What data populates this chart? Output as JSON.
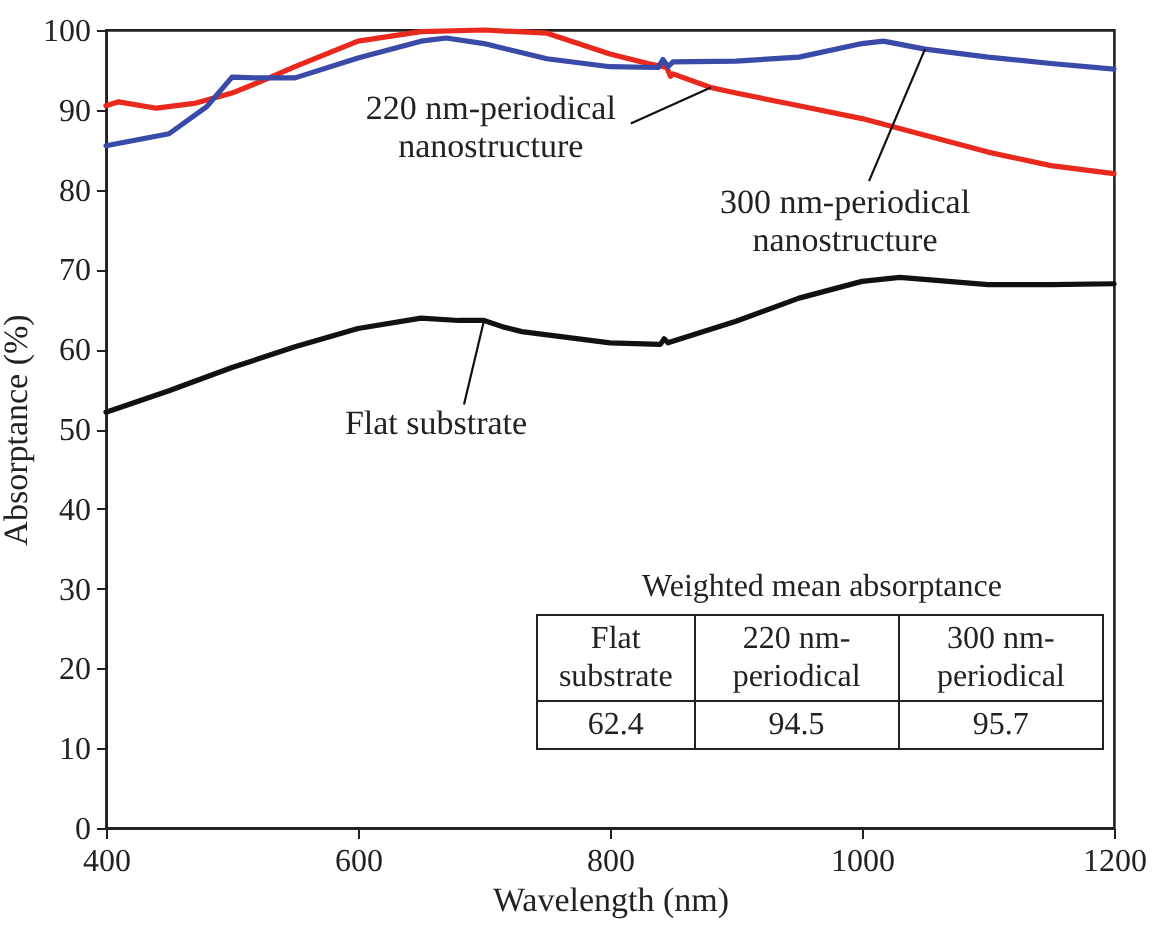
{
  "chart_data": {
    "type": "line",
    "xlabel": "Wavelength (nm)",
    "ylabel": "Absorptance (%)",
    "xlim": [
      400,
      1200
    ],
    "ylim": [
      0,
      100
    ],
    "xticks": [
      400,
      600,
      800,
      1000,
      1200
    ],
    "yticks": [
      0,
      10,
      20,
      30,
      40,
      50,
      60,
      70,
      80,
      90,
      100
    ],
    "grid": false,
    "line_style": "solid",
    "marker": "none",
    "series": [
      {
        "color": "#111111",
        "x": [
          400,
          450,
          500,
          550,
          600,
          650,
          680,
          700,
          715,
          730,
          800,
          840,
          843,
          846,
          900,
          950,
          1000,
          1030,
          1100,
          1150,
          1200
        ],
        "values": [
          52.1,
          54.8,
          57.7,
          60.3,
          62.6,
          63.9,
          63.6,
          63.6,
          62.8,
          62.2,
          60.8,
          60.6,
          61.3,
          60.8,
          63.5,
          66.4,
          68.5,
          69,
          68.1,
          68.1,
          68.2
        ]
      },
      {
        "color": "#e8291c",
        "x": [
          400,
          410,
          440,
          470,
          500,
          522,
          550,
          600,
          650,
          700,
          750,
          800,
          830,
          845,
          848,
          850,
          880,
          900,
          950,
          1000,
          1050,
          1100,
          1150,
          1200
        ],
        "values": [
          90.5,
          91,
          90.2,
          90.8,
          92.1,
          93.5,
          95.4,
          98.6,
          99.8,
          100,
          99.6,
          97,
          95.8,
          95.3,
          94.2,
          94.5,
          92.8,
          92.1,
          90.5,
          88.9,
          86.8,
          84.7,
          83,
          82
        ]
      },
      {
        "color": "#3a4aa8",
        "x": [
          400,
          450,
          480,
          500,
          520,
          550,
          600,
          650,
          670,
          700,
          750,
          800,
          838,
          842,
          846,
          850,
          900,
          950,
          1000,
          1017,
          1050,
          1100,
          1150,
          1200
        ],
        "values": [
          85.5,
          87,
          90.4,
          94.1,
          94,
          94,
          96.5,
          98.6,
          99,
          98.3,
          96.4,
          95.4,
          95.3,
          96.3,
          95.4,
          96,
          96.1,
          96.6,
          98.3,
          98.6,
          97.6,
          96.6,
          95.8,
          95.1
        ]
      }
    ],
    "annotations": [
      {
        "text": "Flat substrate",
        "x": 700,
        "y": 63.6
      },
      {
        "text": "220 nm-periodical nanostructure",
        "x": 880,
        "y": 92.8
      },
      {
        "text": "300 nm-periodical nanostructure",
        "x": 1050,
        "y": 97.6
      },
      "Weighted mean absorptance",
      "Flat substrate",
      "220 nm-periodical",
      "300 nm-periodical",
      "62.4",
      "94.5",
      "95.7"
    ]
  }
}
